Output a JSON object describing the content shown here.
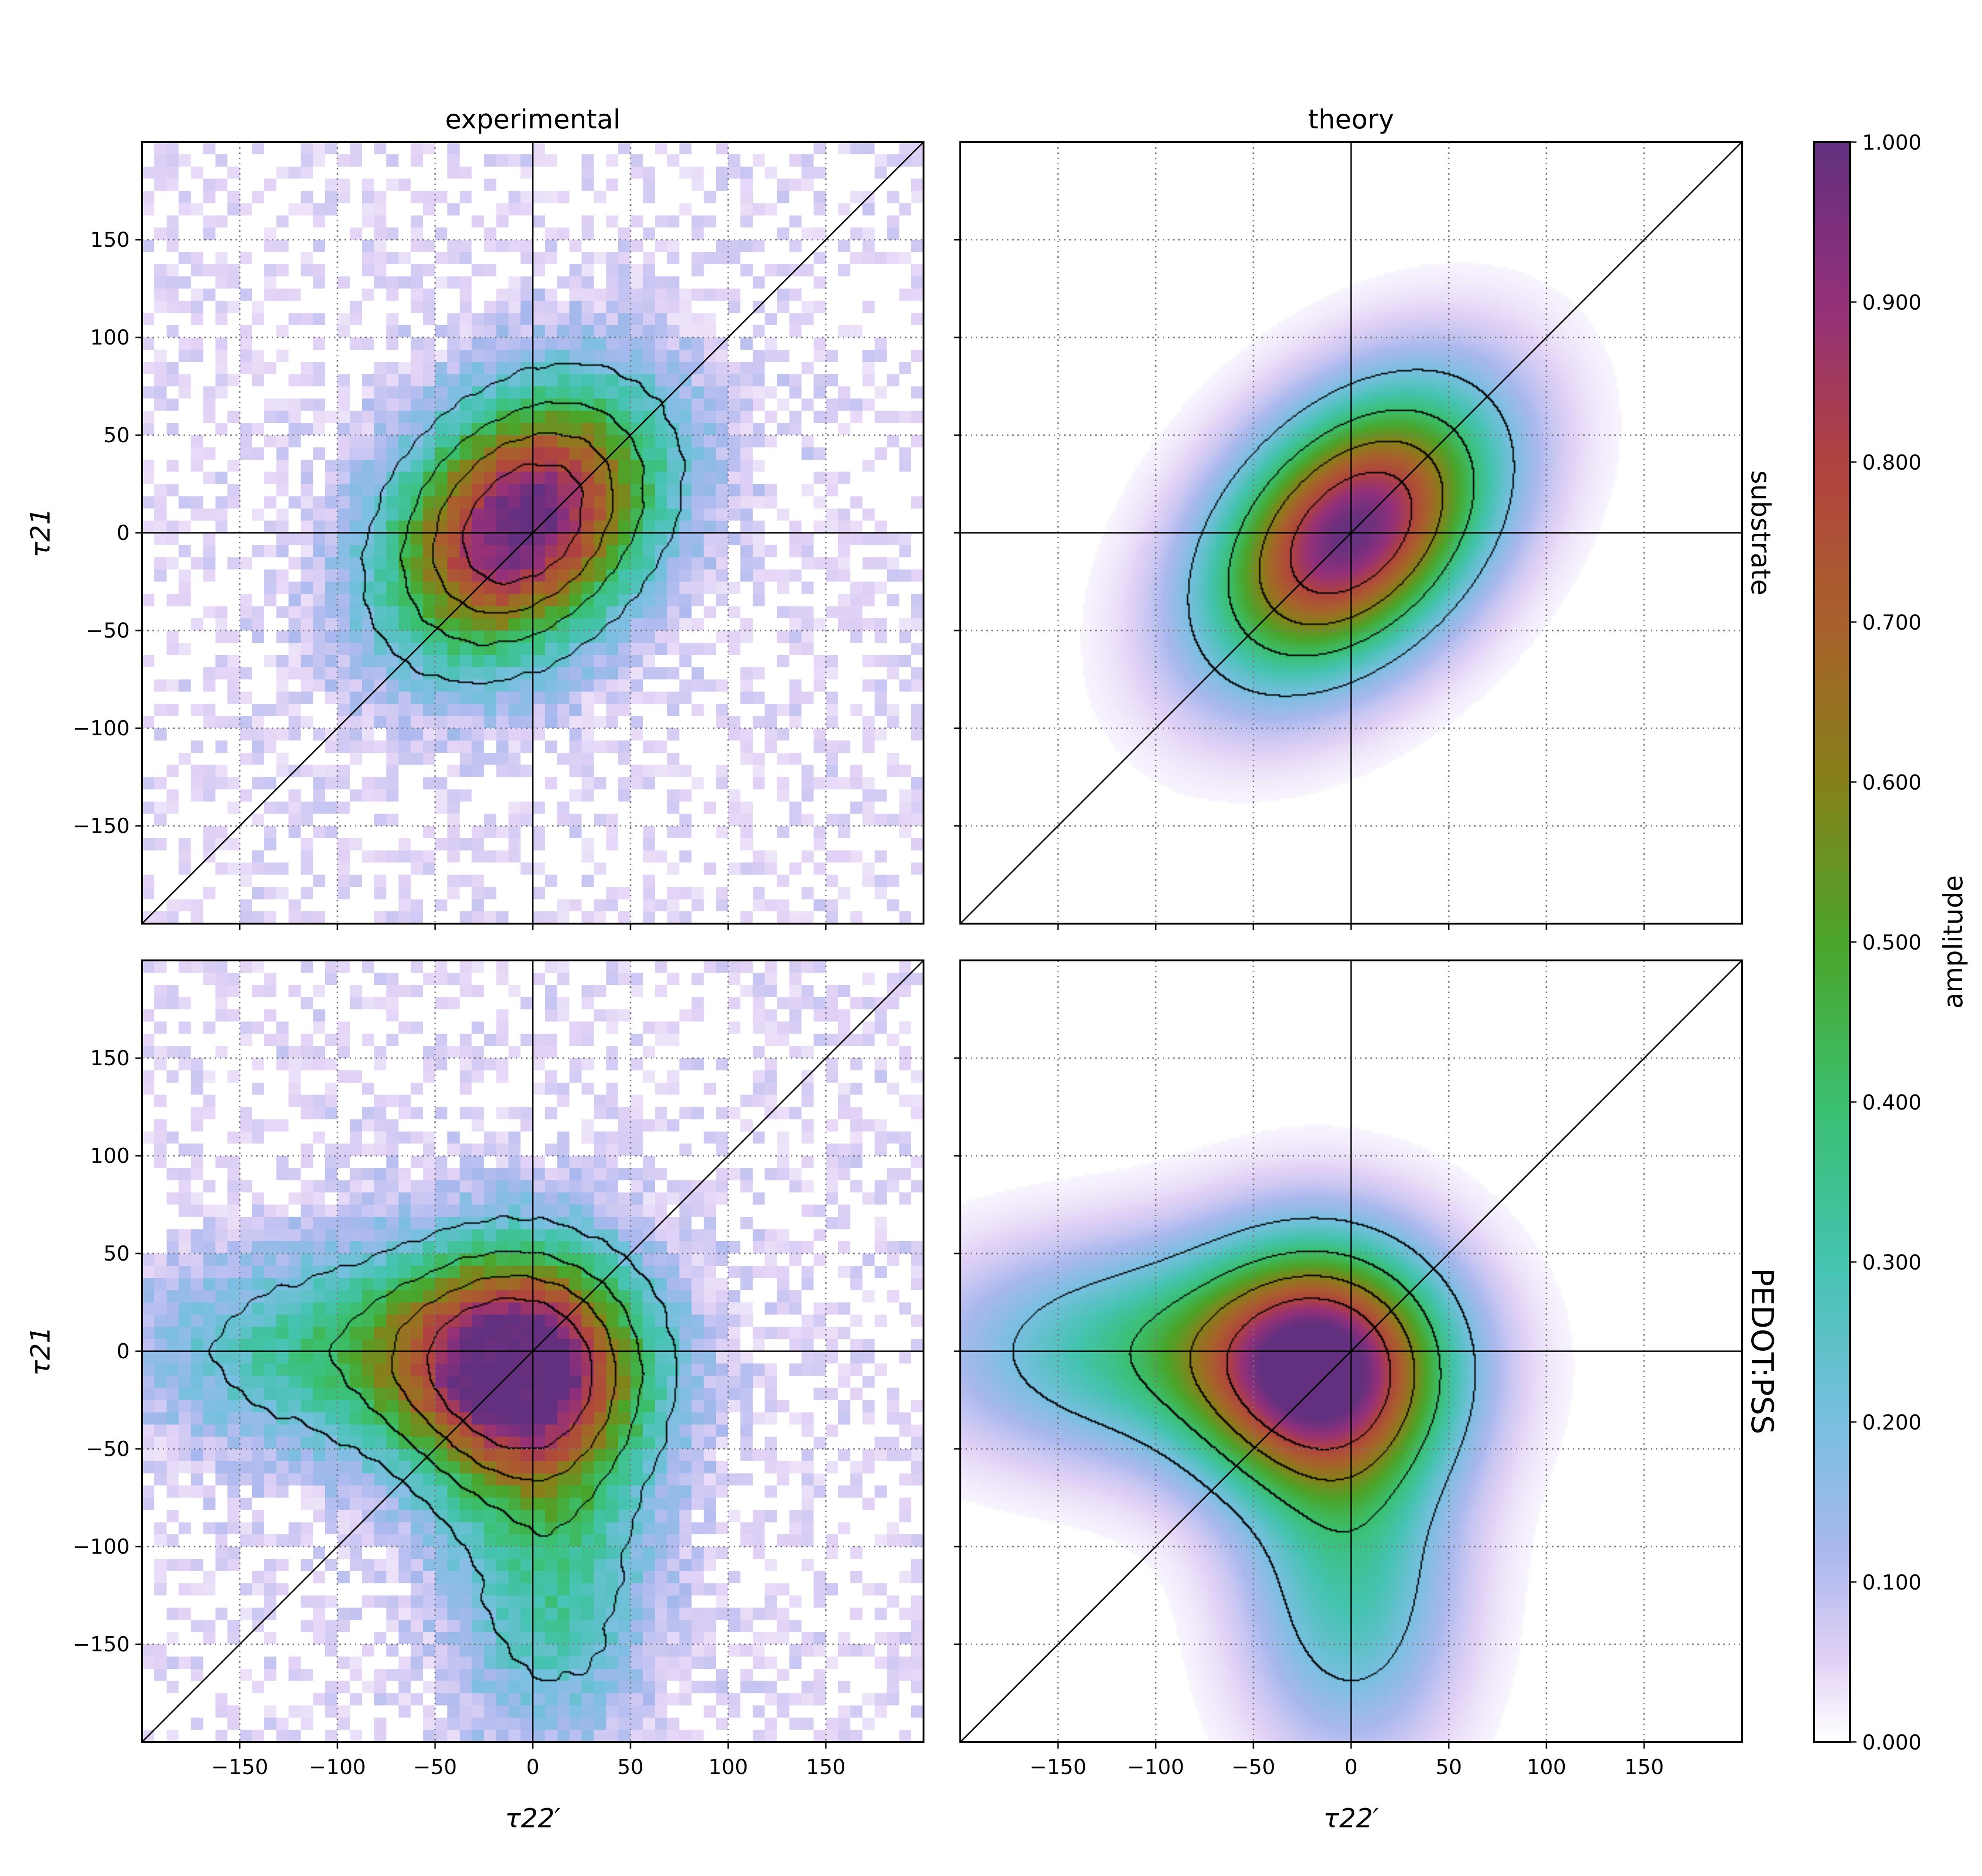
{
  "chart_data": {
    "type": "heatmap",
    "layout": "2x2 grid with shared colorbar on the right",
    "column_titles": [
      "experimental",
      "theory"
    ],
    "row_labels": [
      "substrate",
      "PEDOT:PSS"
    ],
    "xlabel": "τ22′",
    "ylabel": "τ21",
    "xlim": [
      -200,
      200
    ],
    "ylim": [
      -200,
      200
    ],
    "xticks": [
      -150,
      -100,
      -50,
      0,
      50,
      100,
      150
    ],
    "yticks": [
      -150,
      -100,
      -50,
      0,
      50,
      100,
      150
    ],
    "xtick_labels": [
      "−150",
      "−100",
      "−50",
      "0",
      "50",
      "100",
      "150"
    ],
    "ytick_labels": [
      "−150",
      "−100",
      "−50",
      "0",
      "50",
      "100",
      "150"
    ],
    "grid": "dotted gray",
    "reference_lines": [
      "x = 0",
      "y = 0",
      "y = x"
    ],
    "contour_levels_estimated": [
      0.2,
      0.4,
      0.6,
      0.8
    ],
    "panels": [
      {
        "row": "substrate",
        "column": "experimental",
        "peak": [
          -5,
          5
        ],
        "shape": "diagonal-elongated, noisy binned"
      },
      {
        "row": "substrate",
        "column": "theory",
        "peak": [
          0,
          0
        ],
        "shape": "elliptical along diagonal"
      },
      {
        "row": "PEDOT:PSS",
        "column": "experimental",
        "peak": [
          -10,
          -20
        ],
        "shape": "triangular, tails to left and down, noisy binned"
      },
      {
        "row": "PEDOT:PSS",
        "column": "theory",
        "peak": [
          -15,
          -10
        ],
        "shape": "triangular, tails to left and down"
      }
    ],
    "colorbar": {
      "label": "amplitude",
      "range": [
        0,
        1
      ],
      "ticks": [
        "0.000",
        "0.100",
        "0.200",
        "0.300",
        "0.400",
        "0.500",
        "0.600",
        "0.700",
        "0.800",
        "0.900",
        "1.000"
      ],
      "colors": [
        "#ffffff",
        "#e2d2f6",
        "#a9b8ee",
        "#78bfe0",
        "#45c3b0",
        "#3bbf6e",
        "#4aa52a",
        "#86811a",
        "#a9612c",
        "#b0433f",
        "#94307a",
        "#63307f"
      ]
    }
  }
}
